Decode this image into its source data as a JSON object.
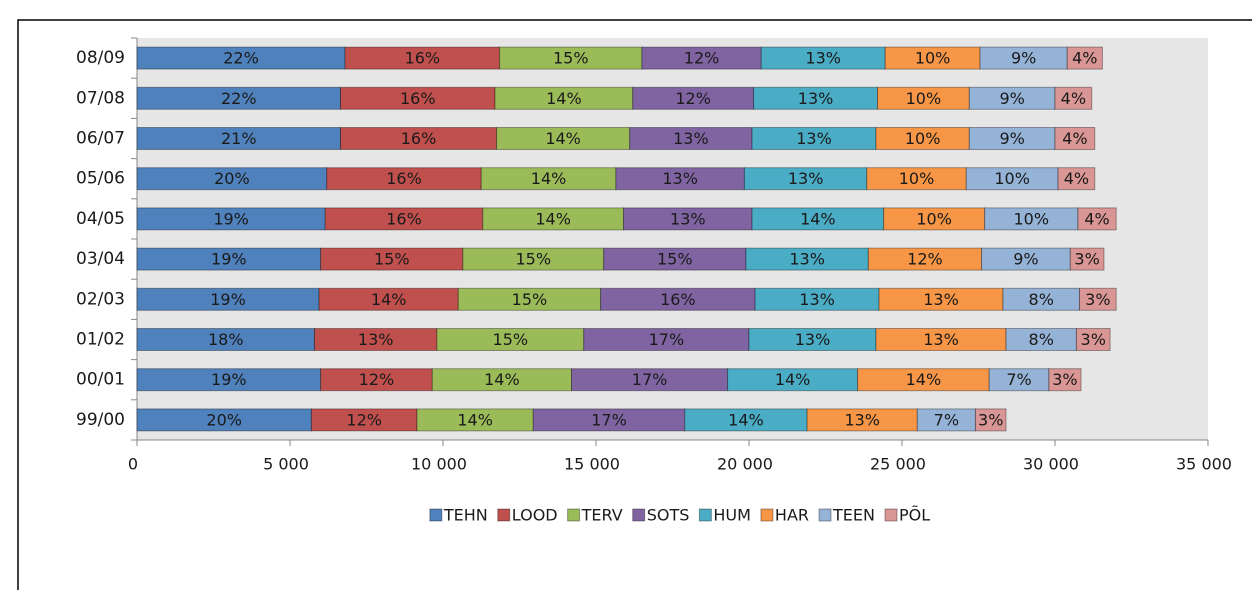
{
  "chart_data": {
    "type": "stacked-bar-horizontal",
    "categories": [
      "08/09",
      "07/08",
      "06/07",
      "05/06",
      "04/05",
      "03/04",
      "02/03",
      "01/02",
      "00/01",
      "99/00"
    ],
    "series": [
      {
        "name": "TEHN",
        "color": "#4f81bd",
        "values": [
          6800,
          6650,
          6650,
          6200,
          6150,
          6000,
          5950,
          5800,
          6000,
          5700
        ],
        "value_labels": [
          "22%",
          "22%",
          "21%",
          "20%",
          "19%",
          "19%",
          "19%",
          "18%",
          "19%",
          "20%"
        ]
      },
      {
        "name": "LOOD",
        "color": "#c0504d",
        "values": [
          5050,
          5050,
          5100,
          5050,
          5150,
          4650,
          4550,
          4000,
          3650,
          3450
        ],
        "value_labels": [
          "16%",
          "16%",
          "16%",
          "16%",
          "16%",
          "15%",
          "14%",
          "13%",
          "12%",
          "12%"
        ]
      },
      {
        "name": "TERV",
        "color": "#9bbb59",
        "values": [
          4650,
          4500,
          4350,
          4400,
          4600,
          4600,
          4650,
          4800,
          4550,
          3800
        ],
        "value_labels": [
          "15%",
          "14%",
          "14%",
          "14%",
          "14%",
          "15%",
          "15%",
          "15%",
          "14%",
          "14%"
        ]
      },
      {
        "name": "SOTS",
        "color": "#8064a2",
        "values": [
          3900,
          3950,
          4000,
          4200,
          4200,
          4650,
          5050,
          5400,
          5100,
          4950
        ],
        "value_labels": [
          "12%",
          "12%",
          "13%",
          "13%",
          "13%",
          "15%",
          "16%",
          "17%",
          "17%",
          "17%"
        ]
      },
      {
        "name": "HUM",
        "color": "#4bacc6",
        "values": [
          4050,
          4050,
          4050,
          4000,
          4300,
          4000,
          4050,
          4150,
          4250,
          4000
        ],
        "value_labels": [
          "13%",
          "13%",
          "13%",
          "13%",
          "14%",
          "13%",
          "13%",
          "13%",
          "14%",
          "14%"
        ]
      },
      {
        "name": "HAR",
        "color": "#f79646",
        "values": [
          3100,
          3000,
          3050,
          3250,
          3300,
          3700,
          4050,
          4250,
          4300,
          3600
        ],
        "value_labels": [
          "10%",
          "10%",
          "10%",
          "10%",
          "10%",
          "12%",
          "13%",
          "13%",
          "14%",
          "13%"
        ]
      },
      {
        "name": "TEEN",
        "color": "#95b3d7",
        "values": [
          2850,
          2800,
          2800,
          3000,
          3050,
          2900,
          2500,
          2300,
          1950,
          1900
        ],
        "value_labels": [
          "9%",
          "9%",
          "9%",
          "10%",
          "10%",
          "9%",
          "8%",
          "8%",
          "7%",
          "7%"
        ]
      },
      {
        "name": "PÕL",
        "color": "#d99694",
        "values": [
          1150,
          1200,
          1300,
          1200,
          1250,
          1100,
          1200,
          1100,
          1050,
          1000
        ],
        "value_labels": [
          "4%",
          "4%",
          "4%",
          "4%",
          "4%",
          "3%",
          "3%",
          "3%",
          "3%",
          "3%"
        ]
      }
    ],
    "xlim": [
      0,
      35000
    ],
    "xticks": [
      0,
      {
        "value": 5000,
        "label": "5 000"
      },
      {
        "value": 10000,
        "label": "10 000"
      },
      {
        "value": 15000,
        "label": "15 000"
      },
      {
        "value": 20000,
        "label": "20 000"
      },
      {
        "value": 25000,
        "label": "25 000"
      },
      {
        "value": 30000,
        "label": "30 000"
      },
      {
        "value": 35000,
        "label": "35 000"
      }
    ],
    "legend": "bottom"
  }
}
